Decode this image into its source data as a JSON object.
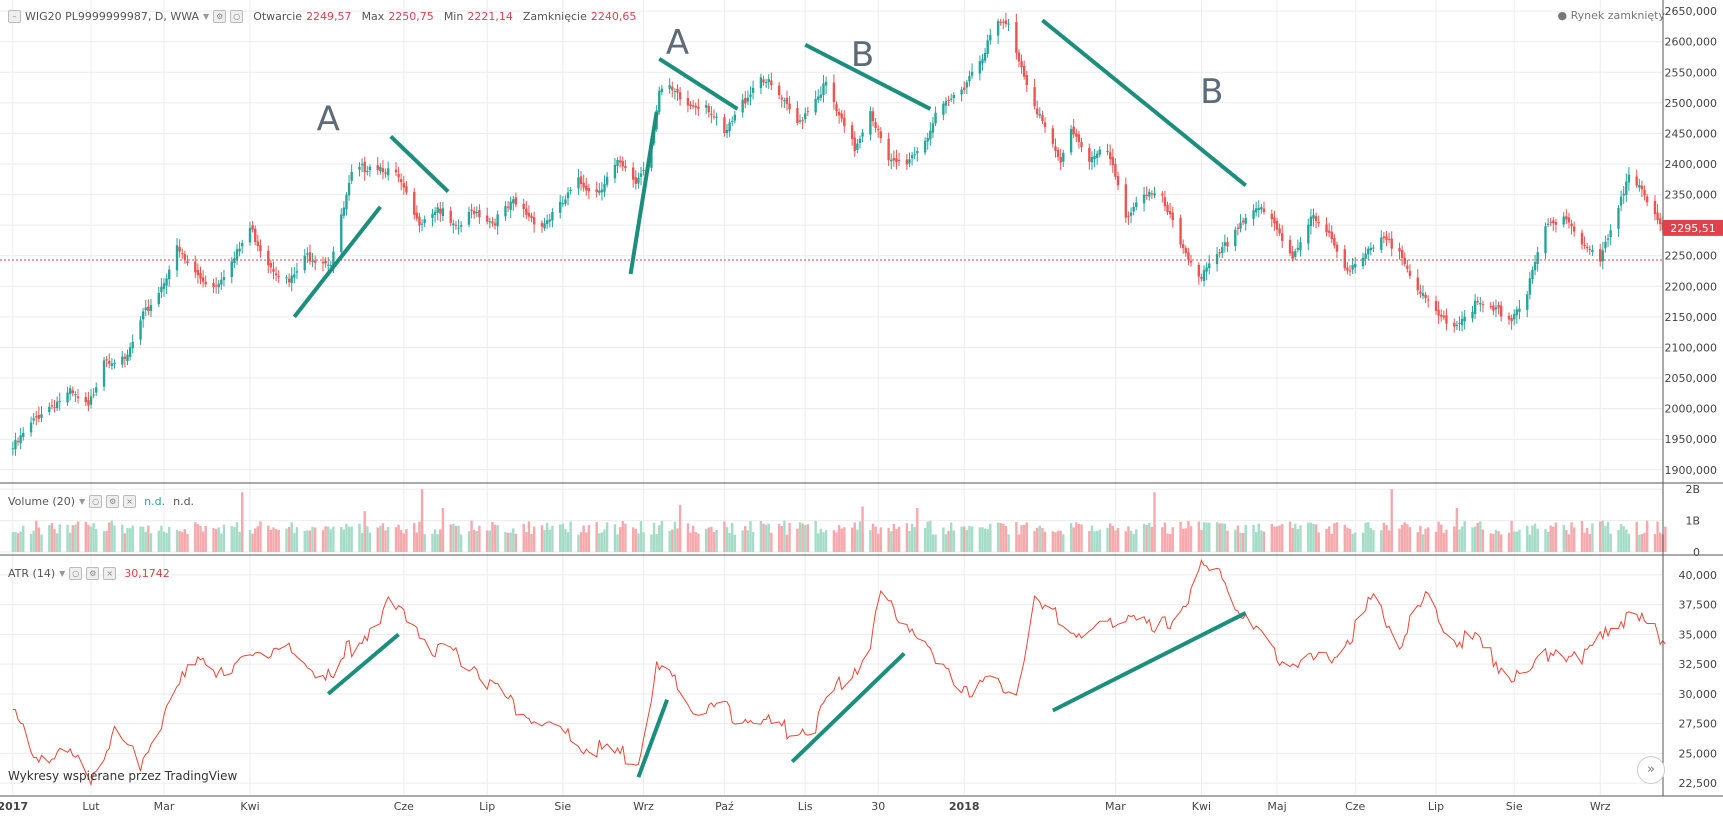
{
  "header": {
    "symbol": "WIG20 PL9999999987, D, WWA",
    "open_label": "Otwarcie",
    "open": "2249,57",
    "high_label": "Max",
    "high": "2250,75",
    "low_label": "Min",
    "low": "2221,14",
    "close_label": "Zamknięcie",
    "close": "2240,65",
    "status": "Rynek zamknięty"
  },
  "volume_legend": {
    "name": "Volume (20)",
    "value1": "n.d.",
    "value2": "n.d."
  },
  "atr_legend": {
    "name": "ATR (14)",
    "value": "30,1742"
  },
  "credit": "Wykresy wspierane przez TradingView",
  "colors": {
    "up": "#26a69a",
    "down": "#ef5350",
    "atr": "#f44336",
    "annotation": "#1b8f7c",
    "label": "#5d6b78",
    "last_price_bg": "#e0414b"
  },
  "chart_data": [
    {
      "type": "candlestick",
      "title": "WIG20 PL9999999987, D, WWA",
      "x_tick_labels": [
        "2017",
        "Lut",
        "Mar",
        "Kwi",
        "Cze",
        "Lip",
        "Sie",
        "Wrz",
        "Paź",
        "Lis",
        "30",
        "2018",
        "Mar",
        "Kwi",
        "Maj",
        "Cze",
        "Lip",
        "Sie",
        "Wrz"
      ],
      "y_ticks": [
        "1900,000",
        "1950,000",
        "2000,000",
        "2050,000",
        "2100,000",
        "2150,000",
        "2200,000",
        "2250,000",
        "2300,000",
        "2350,000",
        "2400,000",
        "2450,000",
        "2500,000",
        "2550,000",
        "2600,000",
        "2650,000"
      ],
      "ylim": [
        1880,
        2660
      ],
      "last_price": "2295,51",
      "close_path": [
        [
          "2017-01-02",
          1935
        ],
        [
          "2017-01-13",
          1995
        ],
        [
          "2017-01-24",
          2025
        ],
        [
          "2017-01-31",
          2000
        ],
        [
          "2017-02-06",
          2085
        ],
        [
          "2017-02-14",
          2075
        ],
        [
          "2017-02-21",
          2150
        ],
        [
          "2017-02-28",
          2200
        ],
        [
          "2017-03-06",
          2260
        ],
        [
          "2017-03-13",
          2220
        ],
        [
          "2017-03-20",
          2200
        ],
        [
          "2017-03-28",
          2245
        ],
        [
          "2017-04-03",
          2295
        ],
        [
          "2017-04-10",
          2240
        ],
        [
          "2017-04-18",
          2205
        ],
        [
          "2017-04-25",
          2250
        ],
        [
          "2017-05-04",
          2240
        ],
        [
          "2017-05-12",
          2380
        ],
        [
          "2017-05-19",
          2400
        ],
        [
          "2017-05-24",
          2395
        ],
        [
          "2017-05-30",
          2375
        ],
        [
          "2017-06-06",
          2305
        ],
        [
          "2017-06-14",
          2330
        ],
        [
          "2017-06-21",
          2290
        ],
        [
          "2017-06-28",
          2325
        ],
        [
          "2017-07-05",
          2305
        ],
        [
          "2017-07-13",
          2335
        ],
        [
          "2017-07-24",
          2300
        ],
        [
          "2017-07-31",
          2330
        ],
        [
          "2017-08-07",
          2370
        ],
        [
          "2017-08-14",
          2355
        ],
        [
          "2017-08-22",
          2400
        ],
        [
          "2017-08-29",
          2370
        ],
        [
          "2017-09-01",
          2395
        ],
        [
          "2017-09-04",
          2440
        ],
        [
          "2017-09-07",
          2520
        ],
        [
          "2017-09-11",
          2520
        ],
        [
          "2017-09-18",
          2495
        ],
        [
          "2017-09-25",
          2500
        ],
        [
          "2017-10-02",
          2445
        ],
        [
          "2017-10-09",
          2500
        ],
        [
          "2017-10-16",
          2545
        ],
        [
          "2017-10-23",
          2510
        ],
        [
          "2017-10-30",
          2465
        ],
        [
          "2017-11-06",
          2510
        ],
        [
          "2017-11-10",
          2530
        ],
        [
          "2017-11-15",
          2475
        ],
        [
          "2017-11-21",
          2425
        ],
        [
          "2017-11-27",
          2490
        ],
        [
          "2017-12-04",
          2400
        ],
        [
          "2017-12-11",
          2405
        ],
        [
          "2017-12-18",
          2440
        ],
        [
          "2017-12-22",
          2475
        ],
        [
          "2018-01-02",
          2530
        ],
        [
          "2018-01-09",
          2580
        ],
        [
          "2018-01-15",
          2630
        ],
        [
          "2018-01-19",
          2625
        ],
        [
          "2018-01-24",
          2560
        ],
        [
          "2018-01-29",
          2500
        ],
        [
          "2018-02-05",
          2425
        ],
        [
          "2018-02-08",
          2400
        ],
        [
          "2018-02-12",
          2460
        ],
        [
          "2018-02-19",
          2410
        ],
        [
          "2018-02-26",
          2420
        ],
        [
          "2018-03-05",
          2315
        ],
        [
          "2018-03-12",
          2355
        ],
        [
          "2018-03-19",
          2340
        ],
        [
          "2018-03-26",
          2270
        ],
        [
          "2018-04-03",
          2215
        ],
        [
          "2018-04-10",
          2250
        ],
        [
          "2018-04-17",
          2300
        ],
        [
          "2018-04-24",
          2330
        ],
        [
          "2018-04-30",
          2305
        ],
        [
          "2018-05-08",
          2250
        ],
        [
          "2018-05-15",
          2315
        ],
        [
          "2018-05-22",
          2280
        ],
        [
          "2018-05-29",
          2230
        ],
        [
          "2018-06-05",
          2250
        ],
        [
          "2018-06-12",
          2275
        ],
        [
          "2018-06-19",
          2255
        ],
        [
          "2018-06-26",
          2185
        ],
        [
          "2018-07-03",
          2150
        ],
        [
          "2018-07-10",
          2140
        ],
        [
          "2018-07-17",
          2170
        ],
        [
          "2018-07-24",
          2160
        ],
        [
          "2018-07-31",
          2150
        ],
        [
          "2018-08-06",
          2190
        ],
        [
          "2018-08-13",
          2295
        ],
        [
          "2018-08-20",
          2320
        ],
        [
          "2018-08-27",
          2270
        ],
        [
          "2018-09-03",
          2240
        ],
        [
          "2018-09-10",
          2335
        ],
        [
          "2018-09-14",
          2385
        ],
        [
          "2018-09-20",
          2345
        ],
        [
          "2018-09-26",
          2295
        ]
      ]
    },
    {
      "type": "bar",
      "title": "Volume (20)",
      "y_ticks": [
        "0",
        "1B",
        "2B"
      ],
      "ylim": [
        0,
        2
      ],
      "note": "daily volume bars, coloured by candle direction; typical level about 0.6B",
      "spikes": [
        [
          "2017-03-31",
          1.9
        ],
        [
          "2017-05-17",
          1.3
        ],
        [
          "2017-06-08",
          2.0
        ],
        [
          "2017-06-16",
          1.4
        ],
        [
          "2017-09-15",
          1.5
        ],
        [
          "2017-11-24",
          1.45
        ],
        [
          "2017-12-15",
          1.4
        ],
        [
          "2018-03-16",
          1.9
        ],
        [
          "2018-06-15",
          2.0
        ],
        [
          "2018-07-10",
          1.4
        ],
        [
          "2018-09-21",
          1.0
        ]
      ]
    },
    {
      "type": "line",
      "title": "ATR (14)",
      "value": "30,1742",
      "y_ticks": [
        "22,500",
        "25,000",
        "27,500",
        "30,000",
        "32,500",
        "35,000",
        "37,500",
        "40,000"
      ],
      "ylim": [
        21.5,
        41.5
      ],
      "series": [
        {
          "values": [
            [
              "2017-01-02",
              28.5
            ],
            [
              "2017-01-09",
              25.2
            ],
            [
              "2017-01-23",
              24.8
            ],
            [
              "2017-02-01",
              23.0
            ],
            [
              "2017-02-10",
              26.8
            ],
            [
              "2017-02-20",
              24.2
            ],
            [
              "2017-03-01",
              28.0
            ],
            [
              "2017-03-14",
              33.5
            ],
            [
              "2017-03-25",
              31.0
            ],
            [
              "2017-04-03",
              33.5
            ],
            [
              "2017-04-18",
              33.5
            ],
            [
              "2017-05-05",
              31.0
            ],
            [
              "2017-05-10",
              33.5
            ],
            [
              "2017-05-17",
              35.0
            ],
            [
              "2017-05-26",
              37.5
            ],
            [
              "2017-06-05",
              36.0
            ],
            [
              "2017-06-14",
              33.5
            ],
            [
              "2017-06-28",
              32.5
            ],
            [
              "2017-07-10",
              29.5
            ],
            [
              "2017-07-20",
              28.0
            ],
            [
              "2017-08-02",
              26.5
            ],
            [
              "2017-08-10",
              25.5
            ],
            [
              "2017-08-21",
              25.0
            ],
            [
              "2017-08-30",
              24.5
            ],
            [
              "2017-09-06",
              32.0
            ],
            [
              "2017-09-13",
              31.0
            ],
            [
              "2017-09-20",
              28.5
            ],
            [
              "2017-10-02",
              28.5
            ],
            [
              "2017-10-13",
              28.0
            ],
            [
              "2017-10-25",
              27.0
            ],
            [
              "2017-11-06",
              27.5
            ],
            [
              "2017-11-16",
              31.0
            ],
            [
              "2017-11-27",
              33.5
            ],
            [
              "2017-12-01",
              38.5
            ],
            [
              "2017-12-08",
              36.5
            ],
            [
              "2017-12-13",
              36.0
            ],
            [
              "2017-12-22",
              32.5
            ],
            [
              "2018-01-04",
              30.5
            ],
            [
              "2018-01-12",
              31.0
            ],
            [
              "2018-01-22",
              30.0
            ],
            [
              "2018-01-29",
              37.5
            ],
            [
              "2018-02-09",
              36.0
            ],
            [
              "2018-02-19",
              34.5
            ],
            [
              "2018-03-01",
              36.5
            ],
            [
              "2018-03-09",
              37.0
            ],
            [
              "2018-03-16",
              35.0
            ],
            [
              "2018-03-27",
              37.5
            ],
            [
              "2018-04-03",
              40.5
            ],
            [
              "2018-04-11",
              40.0
            ],
            [
              "2018-04-20",
              36.0
            ],
            [
              "2018-04-30",
              33.5
            ],
            [
              "2018-05-09",
              32.5
            ],
            [
              "2018-05-21",
              33.0
            ],
            [
              "2018-06-01",
              35.5
            ],
            [
              "2018-06-08",
              38.0
            ],
            [
              "2018-06-18",
              34.5
            ],
            [
              "2018-06-28",
              38.0
            ],
            [
              "2018-07-09",
              34.5
            ],
            [
              "2018-07-17",
              34.5
            ],
            [
              "2018-07-24",
              33.0
            ],
            [
              "2018-08-01",
              31.5
            ],
            [
              "2018-08-09",
              32.0
            ],
            [
              "2018-08-16",
              34.0
            ],
            [
              "2018-08-27",
              32.5
            ],
            [
              "2018-09-04",
              35.5
            ],
            [
              "2018-09-14",
              36.5
            ],
            [
              "2018-09-26",
              35.0
            ]
          ]
        }
      ]
    }
  ],
  "annotations": {
    "labels": [
      {
        "text": "A",
        "date": "2017-05-03",
        "price": 2455
      },
      {
        "text": "A",
        "date": "2017-09-14",
        "price": 2580
      },
      {
        "text": "B",
        "date": "2017-11-24",
        "price": 2560
      },
      {
        "text": "B",
        "date": "2018-04-07",
        "price": 2500
      }
    ]
  }
}
